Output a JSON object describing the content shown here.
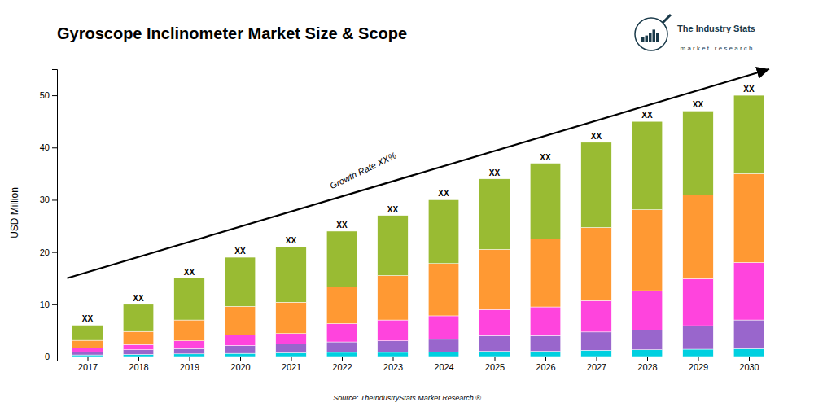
{
  "chart_data": {
    "type": "bar",
    "stacked": true,
    "title": "Gyroscope Inclinometer Market Size & Scope",
    "ylabel": "USD Million",
    "source": "Source: TheIndustryStats Market Research ®",
    "logo": [
      "The Industry Stats",
      "m a r k e t   r e s e a r c h"
    ],
    "x": [
      2017,
      2018,
      2019,
      2020,
      2021,
      2022,
      2023,
      2024,
      2025,
      2026,
      2027,
      2028,
      2029,
      2030
    ],
    "series": [
      {
        "color": "#00d0e0",
        "values": [
          0.3,
          0.4,
          0.5,
          0.6,
          0.7,
          0.8,
          0.8,
          0.9,
          1.0,
          1.0,
          1.2,
          1.3,
          1.4,
          1.5
        ]
      },
      {
        "color": "#9966cc",
        "values": [
          0.6,
          0.9,
          1.0,
          1.5,
          1.7,
          2.0,
          2.2,
          2.4,
          3.0,
          3.0,
          3.5,
          3.8,
          4.5,
          5.5
        ]
      },
      {
        "color": "#ff44dd",
        "values": [
          0.7,
          1.0,
          1.5,
          2.0,
          2.0,
          3.5,
          4.0,
          4.5,
          5.0,
          5.5,
          6.0,
          7.5,
          9.0,
          11.0
        ]
      },
      {
        "color": "#ff9933",
        "values": [
          1.5,
          2.5,
          4.0,
          5.5,
          6.0,
          7.0,
          8.5,
          10.0,
          11.5,
          13.0,
          14.0,
          15.5,
          16.0,
          17.0
        ]
      },
      {
        "color": "#99bb33",
        "values": [
          2.9,
          5.2,
          8.0,
          9.4,
          10.6,
          10.7,
          11.5,
          12.2,
          13.5,
          14.5,
          16.3,
          16.9,
          16.1,
          15.0
        ]
      }
    ],
    "totals": [
      6,
      10,
      15,
      19,
      21,
      24,
      27,
      30,
      34,
      37,
      41,
      45,
      47,
      50
    ],
    "total_labels": [
      "XX",
      "XX",
      "XX",
      "XX",
      "XX",
      "XX",
      "XX",
      "XX",
      "XX",
      "XX",
      "XX",
      "XX",
      "XX",
      "XX"
    ],
    "annotations": [
      {
        "text": "Growth Rate XX%",
        "x": 2021.8,
        "y": 32.0
      }
    ],
    "arrow": {
      "x": [
        2016.6,
        2030.4
      ],
      "y": [
        15.0,
        55.0
      ]
    },
    "xlim": [
      2016.4,
      2030.8
    ],
    "xticks": [
      2017,
      2018,
      2019,
      2020,
      2021,
      2022,
      2023,
      2024,
      2025,
      2026,
      2027,
      2028,
      2029,
      2030
    ],
    "ylim": [
      0,
      55
    ],
    "yticks": [
      0,
      10,
      20,
      30,
      40,
      50
    ],
    "grid": false
  }
}
